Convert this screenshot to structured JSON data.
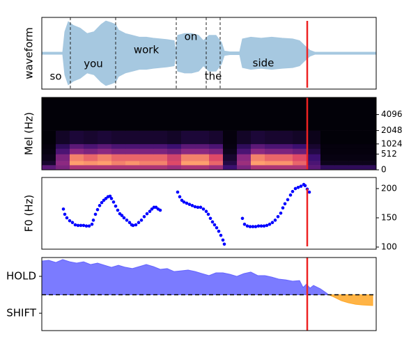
{
  "chart_data": [
    {
      "type": "waveform",
      "ylabel": "waveform",
      "color": "#a6c8e0",
      "xlim": [
        0,
        480
      ],
      "ylim": [
        -1,
        1
      ],
      "x": [
        0,
        30,
        33,
        38,
        45,
        55,
        65,
        75,
        85,
        92,
        100,
        106,
        110,
        120,
        130,
        140,
        150,
        160,
        170,
        180,
        190,
        192,
        195,
        205,
        215,
        225,
        232,
        240,
        250,
        258,
        262,
        270,
        284,
        288,
        300,
        315,
        330,
        345,
        360,
        370,
        378,
        385,
        392,
        480
      ],
      "values": [
        0.03,
        0.03,
        0.6,
        0.88,
        0.78,
        0.7,
        0.55,
        0.6,
        0.8,
        0.9,
        0.85,
        0.8,
        0.65,
        0.55,
        0.5,
        0.45,
        0.45,
        0.42,
        0.4,
        0.38,
        0.35,
        0.05,
        0.5,
        0.55,
        0.55,
        0.5,
        0.35,
        0.5,
        0.5,
        0.3,
        0.06,
        0.04,
        0.04,
        0.4,
        0.45,
        0.42,
        0.45,
        0.42,
        0.4,
        0.35,
        0.2,
        0.08,
        0.03,
        0.03
      ],
      "word_boundaries": [
        41,
        106,
        193,
        236,
        256
      ],
      "words": [
        "so",
        "you",
        "work",
        "on",
        "the",
        "side"
      ],
      "cursor": 381,
      "cursor_color": "#ee2222"
    },
    {
      "type": "heatmap",
      "ylabel": "Mel (Hz)",
      "yscale": "mel",
      "colormap": "magma",
      "xlim": [
        0,
        480
      ],
      "ylim": [
        0,
        8000
      ],
      "yticks": [
        0,
        512,
        1024,
        2048,
        4096
      ],
      "ytick_side": "right",
      "x_edges": [
        0,
        20,
        40,
        60,
        80,
        100,
        120,
        140,
        160,
        180,
        200,
        220,
        240,
        260,
        280,
        300,
        320,
        340,
        360,
        380,
        400,
        420,
        440,
        460,
        480
      ],
      "y_edges": [
        0,
        128,
        256,
        512,
        768,
        1024,
        2048,
        8000
      ],
      "values": [
        [
          0.35,
          0.45,
          0.6,
          0.6,
          0.6,
          0.6,
          0.6,
          0.6,
          0.6,
          0.55,
          0.6,
          0.6,
          0.55,
          0.25,
          0.45,
          0.6,
          0.6,
          0.6,
          0.6,
          0.35,
          0.2,
          0.2,
          0.2,
          0.2
        ],
        [
          0.1,
          0.5,
          0.9,
          0.88,
          0.9,
          0.85,
          0.88,
          0.85,
          0.85,
          0.75,
          0.9,
          0.9,
          0.8,
          0.15,
          0.55,
          0.9,
          0.88,
          0.88,
          0.8,
          0.3,
          0.05,
          0.05,
          0.05,
          0.05
        ],
        [
          0.05,
          0.45,
          0.85,
          0.8,
          0.85,
          0.8,
          0.8,
          0.8,
          0.8,
          0.7,
          0.85,
          0.85,
          0.75,
          0.1,
          0.5,
          0.85,
          0.8,
          0.8,
          0.75,
          0.25,
          0.03,
          0.03,
          0.03,
          0.03
        ],
        [
          0.03,
          0.3,
          0.5,
          0.45,
          0.5,
          0.45,
          0.45,
          0.45,
          0.45,
          0.4,
          0.5,
          0.5,
          0.45,
          0.05,
          0.3,
          0.5,
          0.45,
          0.45,
          0.4,
          0.15,
          0.02,
          0.02,
          0.02,
          0.02
        ],
        [
          0.02,
          0.2,
          0.35,
          0.3,
          0.35,
          0.3,
          0.3,
          0.3,
          0.3,
          0.25,
          0.35,
          0.35,
          0.3,
          0.03,
          0.2,
          0.35,
          0.3,
          0.3,
          0.25,
          0.1,
          0.02,
          0.02,
          0.02,
          0.02
        ],
        [
          0.01,
          0.08,
          0.12,
          0.1,
          0.12,
          0.1,
          0.1,
          0.1,
          0.1,
          0.08,
          0.12,
          0.12,
          0.1,
          0.02,
          0.08,
          0.12,
          0.1,
          0.1,
          0.08,
          0.05,
          0.01,
          0.01,
          0.01,
          0.01
        ],
        [
          0.01,
          0.01,
          0.01,
          0.01,
          0.01,
          0.01,
          0.01,
          0.01,
          0.01,
          0.01,
          0.01,
          0.01,
          0.01,
          0.01,
          0.01,
          0.01,
          0.01,
          0.01,
          0.01,
          0.01,
          0.01,
          0.01,
          0.01,
          0.01
        ]
      ],
      "cursor": 381,
      "cursor_color": "#ee2222"
    },
    {
      "type": "scatter",
      "ylabel": "F0 (Hz)",
      "color": "#0000ff",
      "xlim": [
        0,
        480
      ],
      "ylim": [
        96.4,
        219
      ],
      "yticks": [
        100,
        150,
        200
      ],
      "ytick_side": "right",
      "x": [
        31,
        33,
        36,
        40,
        44,
        48,
        52,
        56,
        60,
        64,
        68,
        72,
        74,
        77,
        80,
        83,
        86,
        89,
        92,
        95,
        98,
        100,
        103,
        106,
        109,
        112,
        115,
        118,
        122,
        126,
        129,
        131,
        135,
        139,
        143,
        147,
        151,
        155,
        158,
        161,
        164,
        167,
        170,
        195,
        198,
        201,
        204,
        208,
        212,
        216,
        220,
        224,
        228,
        232,
        236,
        239,
        242,
        245,
        248,
        251,
        254,
        257,
        260,
        262,
        288,
        291,
        295,
        299,
        303,
        307,
        311,
        315,
        319,
        323,
        327,
        331,
        335,
        339,
        343,
        346,
        349,
        353,
        357,
        360,
        364,
        368,
        372,
        376,
        378,
        381,
        384
      ],
      "values": [
        165,
        156,
        150,
        145,
        142,
        138,
        137,
        137,
        137,
        136,
        136,
        139,
        146,
        156,
        164,
        171,
        176,
        180,
        183,
        186,
        187,
        183,
        177,
        170,
        163,
        157,
        154,
        150,
        146,
        142,
        138,
        137,
        138,
        142,
        146,
        152,
        157,
        161,
        165,
        168,
        168,
        165,
        163,
        194,
        186,
        180,
        177,
        175,
        173,
        171,
        169,
        168,
        168,
        165,
        161,
        156,
        149,
        143,
        138,
        133,
        127,
        120,
        112,
        105,
        149,
        139,
        136,
        135,
        135,
        135,
        136,
        136,
        136,
        137,
        139,
        142,
        146,
        152,
        158,
        167,
        174,
        181,
        189,
        195,
        200,
        202,
        204,
        207,
        205,
        199,
        194
      ],
      "cursor": 381,
      "cursor_color": "#ee2222"
    },
    {
      "type": "area",
      "xlim": [
        0,
        480
      ],
      "ylim": [
        -1.94,
        2.02
      ],
      "yticks": [
        {
          "value": 1,
          "label": "HOLD"
        },
        {
          "value": -1,
          "label": "SHIFT"
        }
      ],
      "ytick_side": "left",
      "hline": 0,
      "series": [
        {
          "color": "#6464ff",
          "x": [
            0,
            10,
            20,
            30,
            40,
            50,
            60,
            70,
            80,
            90,
            100,
            110,
            120,
            130,
            140,
            150,
            160,
            170,
            180,
            190,
            200,
            210,
            220,
            230,
            240,
            250,
            260,
            270,
            280,
            290,
            300,
            310,
            320,
            330,
            340,
            350,
            360,
            370,
            375,
            380,
            385,
            390,
            400,
            410
          ],
          "values": [
            1.83,
            1.87,
            1.75,
            1.91,
            1.79,
            1.72,
            1.79,
            1.64,
            1.72,
            1.6,
            1.49,
            1.6,
            1.49,
            1.42,
            1.53,
            1.64,
            1.53,
            1.38,
            1.42,
            1.26,
            1.3,
            1.34,
            1.26,
            1.15,
            1.04,
            1.19,
            1.19,
            1.11,
            1.0,
            1.15,
            1.23,
            1.04,
            1.04,
            0.96,
            0.85,
            0.81,
            0.74,
            0.77,
            0.4,
            0.58,
            0.36,
            0.51,
            0.32,
            0.06
          ]
        },
        {
          "color": "#ffa726",
          "x": [
            412,
            420,
            430,
            440,
            450,
            460,
            475
          ],
          "values": [
            0,
            -0.13,
            -0.32,
            -0.43,
            -0.51,
            -0.55,
            -0.58
          ]
        }
      ],
      "cursor": 381,
      "cursor_color": "#ee2222"
    }
  ]
}
